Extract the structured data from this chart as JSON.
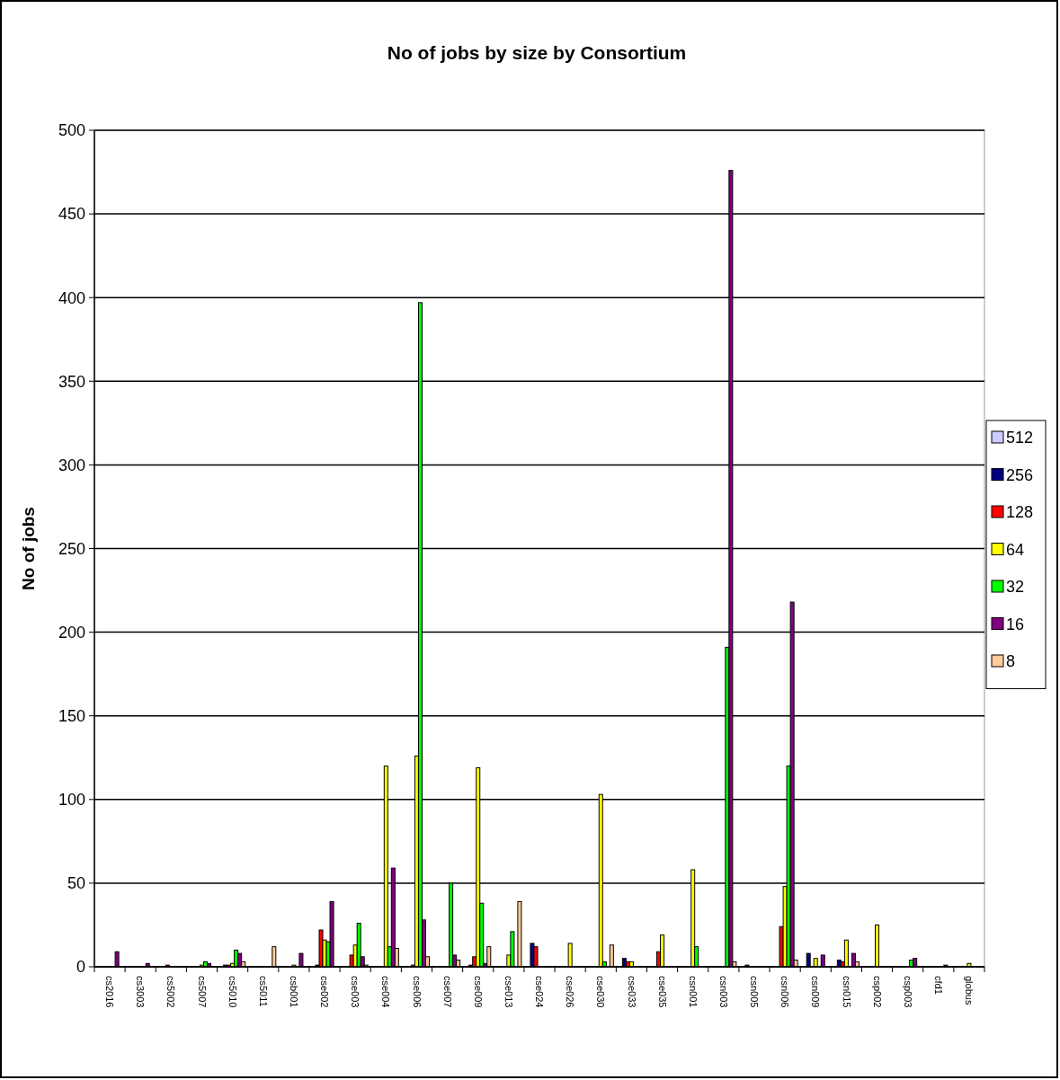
{
  "chart_data": {
    "type": "bar",
    "title": "No of jobs by size by Consortium",
    "ylabel": "No of jobs",
    "categories": [
      "cs2016",
      "cs3003",
      "cs5002",
      "cs5007",
      "cs5010",
      "cs5011",
      "csb001",
      "cse002",
      "cse003",
      "cse004",
      "cse006",
      "cse007",
      "cse009",
      "cse013",
      "cse024",
      "cse026",
      "cse030",
      "cse033",
      "cse035",
      "csn001",
      "csn003",
      "csn005",
      "csn006",
      "csn009",
      "csn015",
      "csp002",
      "csp003",
      "cfd1",
      "globus"
    ],
    "series": [
      {
        "name": "512",
        "color": "#ccccff",
        "values": [
          null,
          null,
          null,
          null,
          null,
          null,
          null,
          null,
          null,
          null,
          null,
          null,
          null,
          null,
          null,
          null,
          null,
          null,
          null,
          null,
          null,
          null,
          null,
          null,
          null,
          null,
          null,
          null,
          null
        ]
      },
      {
        "name": "256",
        "color": "#000080",
        "values": [
          null,
          null,
          null,
          null,
          1,
          null,
          null,
          1,
          null,
          null,
          null,
          null,
          1,
          null,
          14,
          null,
          null,
          5,
          null,
          null,
          null,
          1,
          null,
          8,
          4,
          null,
          null,
          null,
          null
        ]
      },
      {
        "name": "128",
        "color": "#ff0000",
        "values": [
          null,
          null,
          1,
          null,
          1,
          null,
          null,
          22,
          7,
          null,
          1,
          null,
          6,
          null,
          12,
          null,
          null,
          3,
          9,
          null,
          null,
          null,
          24,
          null,
          3,
          null,
          null,
          null,
          null
        ]
      },
      {
        "name": "64",
        "color": "#ffff00",
        "values": [
          null,
          null,
          null,
          1,
          2,
          null,
          1,
          16,
          13,
          120,
          126,
          null,
          119,
          7,
          null,
          14,
          103,
          3,
          19,
          58,
          null,
          null,
          48,
          5,
          16,
          25,
          null,
          null,
          2
        ]
      },
      {
        "name": "32",
        "color": "#00ff00",
        "values": [
          null,
          null,
          null,
          3,
          10,
          null,
          null,
          15,
          26,
          12,
          397,
          50,
          38,
          21,
          null,
          null,
          3,
          null,
          null,
          12,
          191,
          null,
          120,
          null,
          null,
          null,
          4,
          null,
          null
        ]
      },
      {
        "name": "16",
        "color": "#800080",
        "values": [
          9,
          2,
          null,
          2,
          8,
          null,
          8,
          39,
          6,
          59,
          28,
          7,
          2,
          null,
          null,
          null,
          null,
          null,
          null,
          null,
          476,
          null,
          218,
          7,
          8,
          null,
          5,
          1,
          null
        ]
      },
      {
        "name": "8",
        "color": "#ffcc99",
        "values": [
          null,
          null,
          null,
          null,
          3,
          12,
          null,
          null,
          1,
          11,
          6,
          4,
          12,
          39,
          null,
          null,
          13,
          null,
          null,
          null,
          3,
          null,
          4,
          null,
          3,
          null,
          null,
          null,
          null
        ]
      }
    ],
    "ylim": [
      0,
      500
    ],
    "yticks": [
      0,
      50,
      100,
      150,
      200,
      250,
      300,
      350,
      400,
      450,
      500
    ],
    "grid": "y",
    "legend": "right"
  }
}
